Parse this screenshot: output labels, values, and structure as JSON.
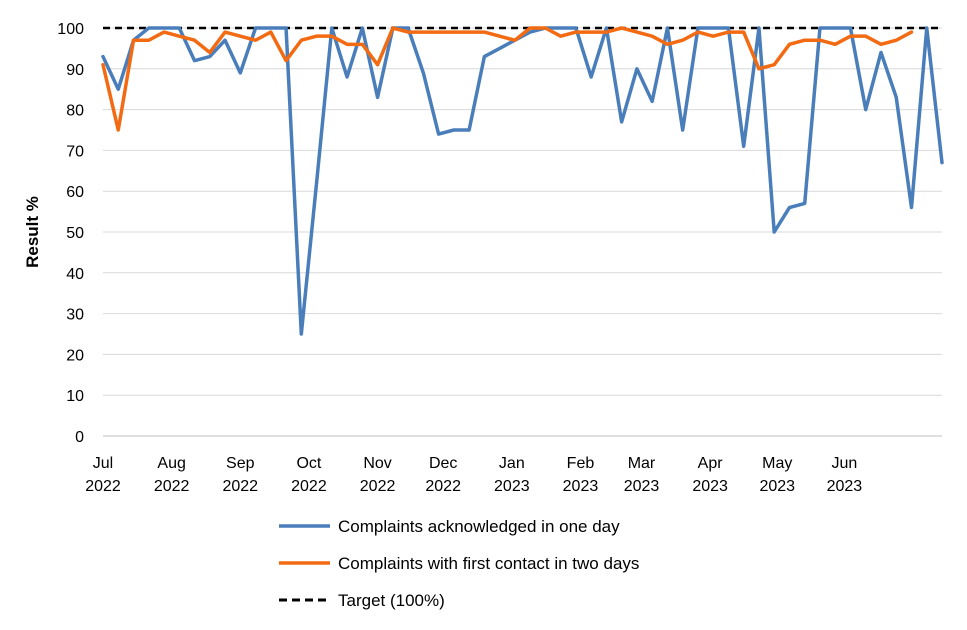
{
  "chart_data": {
    "type": "line",
    "ylabel": "Result %",
    "xlabel": "",
    "ylim": [
      0,
      100
    ],
    "yticks": [
      0,
      10,
      20,
      30,
      40,
      50,
      60,
      70,
      80,
      90,
      100
    ],
    "grid": true,
    "legend_position": "bottom",
    "x_tick_labels": [
      {
        "month": "Jul",
        "year": "2022",
        "index": 0
      },
      {
        "month": "Aug",
        "year": "2022",
        "index": 4.5
      },
      {
        "month": "Sep",
        "year": "2022",
        "index": 9
      },
      {
        "month": "Oct",
        "year": "2022",
        "index": 13.5
      },
      {
        "month": "Nov",
        "year": "2022",
        "index": 18
      },
      {
        "month": "Dec",
        "year": "2022",
        "index": 22.3
      },
      {
        "month": "Jan",
        "year": "2023",
        "index": 26.8
      },
      {
        "month": "Feb",
        "year": "2023",
        "index": 31.3
      },
      {
        "month": "Mar",
        "year": "2023",
        "index": 35.3
      },
      {
        "month": "Apr",
        "year": "2023",
        "index": 39.8
      },
      {
        "month": "May",
        "year": "2023",
        "index": 44.2
      },
      {
        "month": "Jun",
        "year": "2023",
        "index": 48.6
      }
    ],
    "series": [
      {
        "name": "Complaints acknowledged in one day",
        "color": "#4a7ebb",
        "dash": false,
        "values": [
          93,
          85,
          97,
          100,
          100,
          100,
          92,
          93,
          97,
          89,
          100,
          100,
          100,
          25,
          62,
          100,
          88,
          100,
          83,
          100,
          100,
          89,
          74,
          75,
          75,
          93,
          95,
          97,
          99,
          100,
          100,
          100,
          88,
          100,
          77,
          90,
          82,
          100,
          75,
          100,
          100,
          100,
          71,
          100,
          50,
          56,
          57,
          100,
          100,
          100,
          80,
          94,
          83,
          56,
          100,
          67
        ]
      },
      {
        "name": "Complaints with first contact in two days",
        "color": "#f26a12",
        "dash": false,
        "values": [
          91,
          75,
          97,
          97,
          99,
          98,
          97,
          94,
          99,
          98,
          97,
          99,
          92,
          97,
          98,
          98,
          96,
          96,
          91,
          100,
          99,
          99,
          99,
          99,
          99,
          99,
          98,
          97,
          100,
          100,
          98,
          99,
          99,
          99,
          100,
          99,
          98,
          96,
          97,
          99,
          98,
          99,
          99,
          90,
          91,
          96,
          97,
          97,
          96,
          98,
          98,
          96,
          97,
          99
        ]
      },
      {
        "name": "Target (100%)",
        "color": "#000000",
        "dash": true,
        "values": [
          100,
          100
        ]
      }
    ]
  }
}
